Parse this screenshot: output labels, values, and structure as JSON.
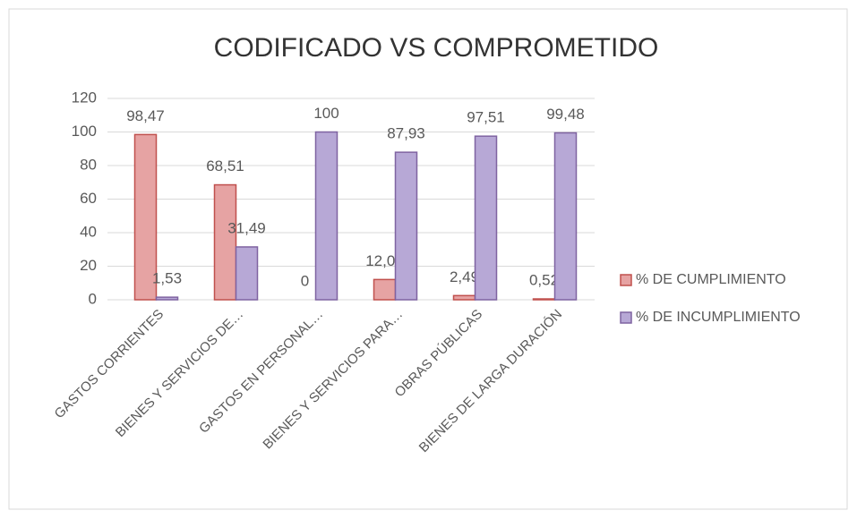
{
  "chart_data": {
    "type": "bar",
    "title": "CODIFICADO VS COMPROMETIDO",
    "categories": [
      "GASTOS CORRIENTES",
      "BIENES Y SERVICIOS DE…",
      "GASTOS EN PERSONAL…",
      "BIENES Y SERVICIOS PARA…",
      "OBRAS PÚBLICAS",
      "BIENES DE LARGA DURACIÓN"
    ],
    "series": [
      {
        "name": "% DE CUMPLIMIENTO",
        "color": "#e6a3a3",
        "stroke": "#c0504d",
        "values": [
          98.47,
          68.51,
          0,
          12.07,
          2.49,
          0.52
        ],
        "value_labels": [
          "98,47",
          "68,51",
          "0",
          "12,07",
          "2,49",
          "0,52"
        ]
      },
      {
        "name": "% DE INCUMPLIMIENTO",
        "color": "#b7a8d6",
        "stroke": "#7f63a1",
        "values": [
          1.53,
          31.49,
          100,
          87.93,
          97.51,
          99.48
        ],
        "value_labels": [
          "1,53",
          "31,49",
          "100",
          "87,93",
          "97,51",
          "99,48"
        ]
      }
    ],
    "ylim": [
      0,
      120
    ],
    "yticks": [
      0,
      20,
      40,
      60,
      80,
      100,
      120
    ],
    "grid": true,
    "legend": "right"
  }
}
